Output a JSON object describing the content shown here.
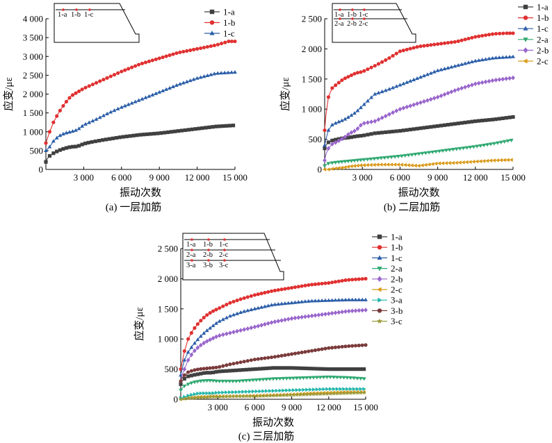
{
  "chart_data": [
    {
      "type": "line",
      "caption": "(a) 一层加筋",
      "xlabel": "振动次数",
      "ylabel": "应变/με",
      "xlim": [
        0,
        15000
      ],
      "ylim": [
        0,
        4000
      ],
      "xticks": [
        3000,
        6000,
        9000,
        12000,
        15000
      ],
      "xtick_labels": [
        "3 000",
        "6 000",
        "9 000",
        "12 000",
        "15 000"
      ],
      "yticks": [
        0,
        500,
        1000,
        1500,
        2000,
        2500,
        3000,
        3500,
        4000
      ],
      "ytick_labels": [
        "0",
        "500",
        "1 000",
        "1 500",
        "2 000",
        "2 500",
        "3 000",
        "3 500",
        "4 000"
      ],
      "legend_position": "top-right",
      "inset_labels": [
        [
          "1-a",
          "1-b",
          "1-c"
        ]
      ],
      "series": [
        {
          "name": "1-a",
          "color": "#404040",
          "marker": "square",
          "x": [
            0,
            100,
            300,
            600,
            1000,
            1500,
            2000,
            2500,
            3000,
            3500,
            4500,
            6000,
            7500,
            9000,
            10500,
            12000,
            13500,
            15000
          ],
          "y": [
            200,
            280,
            360,
            430,
            500,
            560,
            600,
            610,
            680,
            720,
            780,
            860,
            920,
            960,
            1020,
            1080,
            1140,
            1170
          ]
        },
        {
          "name": "1-b",
          "color": "#e03030",
          "marker": "circle",
          "x": [
            0,
            100,
            300,
            600,
            1000,
            1500,
            2000,
            2500,
            3000,
            4000,
            5000,
            6000,
            7500,
            9000,
            10500,
            12000,
            13500,
            14500,
            15000
          ],
          "y": [
            700,
            800,
            1000,
            1250,
            1500,
            1750,
            1950,
            2050,
            2150,
            2300,
            2450,
            2600,
            2800,
            2950,
            3100,
            3200,
            3300,
            3400,
            3400
          ]
        },
        {
          "name": "1-c",
          "color": "#2a5da8",
          "marker": "triangle-up",
          "x": [
            0,
            100,
            300,
            600,
            1000,
            1500,
            2000,
            2500,
            3000,
            4000,
            5000,
            6000,
            7500,
            9000,
            10500,
            12000,
            13500,
            15000
          ],
          "y": [
            500,
            530,
            600,
            750,
            880,
            960,
            1000,
            1050,
            1180,
            1330,
            1500,
            1650,
            1850,
            2050,
            2250,
            2420,
            2550,
            2580
          ]
        }
      ]
    },
    {
      "type": "line",
      "caption": "(b) 二层加筋",
      "xlabel": "振动次数",
      "ylabel": "应变/με",
      "xlim": [
        0,
        15000
      ],
      "ylim": [
        0,
        2500
      ],
      "xticks": [
        3000,
        6000,
        9000,
        12000,
        15000
      ],
      "xtick_labels": [
        "3 000",
        "6 000",
        "9 000",
        "12 000",
        "15 000"
      ],
      "yticks": [
        0,
        500,
        1000,
        1500,
        2000,
        2500
      ],
      "ytick_labels": [
        "0",
        "500",
        "1 000",
        "1 500",
        "2 000",
        "2 500"
      ],
      "legend_position": "top-right",
      "inset_labels": [
        [
          "1-a",
          "1-b",
          "1-c"
        ],
        [
          "2-a",
          "2-b",
          "2-c"
        ]
      ],
      "series": [
        {
          "name": "1-a",
          "color": "#404040",
          "marker": "square",
          "x": [
            0,
            100,
            300,
            600,
            1000,
            1500,
            2000,
            2500,
            3000,
            4000,
            5000,
            6000,
            7500,
            9000,
            10500,
            12000,
            13500,
            15000
          ],
          "y": [
            350,
            400,
            450,
            480,
            500,
            520,
            530,
            550,
            560,
            600,
            620,
            640,
            680,
            720,
            760,
            800,
            830,
            870
          ]
        },
        {
          "name": "1-b",
          "color": "#e03030",
          "marker": "circle",
          "x": [
            0,
            100,
            300,
            600,
            1000,
            1500,
            2000,
            2500,
            3000,
            4000,
            5000,
            6000,
            7500,
            9000,
            10500,
            12000,
            13500,
            14500,
            15000
          ],
          "y": [
            650,
            900,
            1200,
            1350,
            1420,
            1500,
            1550,
            1600,
            1620,
            1720,
            1830,
            1960,
            2040,
            2080,
            2120,
            2200,
            2250,
            2260,
            2260
          ]
        },
        {
          "name": "1-c",
          "color": "#2a5da8",
          "marker": "triangle-up",
          "x": [
            0,
            100,
            300,
            600,
            1000,
            1500,
            2000,
            2500,
            3000,
            4000,
            5000,
            6000,
            7500,
            9000,
            10500,
            12000,
            13500,
            15000
          ],
          "y": [
            400,
            500,
            650,
            740,
            780,
            820,
            880,
            950,
            1050,
            1250,
            1320,
            1400,
            1520,
            1640,
            1720,
            1800,
            1850,
            1870
          ]
        },
        {
          "name": "2-a",
          "color": "#2ea870",
          "marker": "triangle-down",
          "x": [
            0,
            100,
            300,
            600,
            1000,
            1500,
            2000,
            2500,
            3000,
            4500,
            6000,
            7500,
            9000,
            10500,
            12000,
            13500,
            15000
          ],
          "y": [
            60,
            80,
            100,
            110,
            120,
            130,
            140,
            150,
            160,
            190,
            220,
            260,
            300,
            340,
            380,
            430,
            490
          ]
        },
        {
          "name": "2-b",
          "color": "#9966cc",
          "marker": "diamond",
          "x": [
            0,
            100,
            300,
            600,
            1000,
            1500,
            2000,
            2500,
            3000,
            4000,
            5000,
            6000,
            7500,
            9000,
            10500,
            12000,
            13500,
            15000
          ],
          "y": [
            150,
            250,
            350,
            420,
            460,
            520,
            600,
            650,
            760,
            800,
            900,
            1000,
            1100,
            1200,
            1320,
            1420,
            1480,
            1520
          ]
        },
        {
          "name": "2-c",
          "color": "#d99a1a",
          "marker": "triangle-left",
          "x": [
            0,
            300,
            600,
            1000,
            1500,
            2000,
            2500,
            3000,
            4500,
            6000,
            7500,
            9000,
            10500,
            12000,
            13500,
            15000
          ],
          "y": [
            0,
            0,
            10,
            20,
            30,
            50,
            60,
            70,
            80,
            80,
            60,
            100,
            110,
            130,
            150,
            160
          ]
        }
      ]
    },
    {
      "type": "line",
      "caption": "(c) 三层加筋",
      "xlabel": "振动次数",
      "ylabel": "应变/με",
      "xlim": [
        0,
        15000
      ],
      "ylim": [
        0,
        2500
      ],
      "xticks": [
        3000,
        6000,
        9000,
        12000,
        15000
      ],
      "xtick_labels": [
        "3 000",
        "6 000",
        "9 000",
        "12 000",
        "15 000"
      ],
      "yticks": [
        0,
        500,
        1000,
        1500,
        2000,
        2500
      ],
      "ytick_labels": [
        "0",
        "500",
        "1 000",
        "1 500",
        "2 000",
        "2 500"
      ],
      "legend_position": "top-right",
      "inset_labels": [
        [
          "1-a",
          "1-b",
          "1-c"
        ],
        [
          "2-a",
          "2-b",
          "2-c"
        ],
        [
          "3-a",
          "3-b",
          "3-c"
        ]
      ],
      "series": [
        {
          "name": "1-a",
          "color": "#404040",
          "marker": "square",
          "x": [
            0,
            100,
            300,
            600,
            1000,
            1500,
            2000,
            2500,
            3000,
            4500,
            6000,
            7500,
            9000,
            10500,
            12000,
            13500,
            15000
          ],
          "y": [
            250,
            300,
            340,
            380,
            400,
            420,
            440,
            440,
            460,
            480,
            500,
            520,
            520,
            510,
            500,
            500,
            500
          ]
        },
        {
          "name": "1-b",
          "color": "#e03030",
          "marker": "circle",
          "x": [
            0,
            100,
            300,
            600,
            1000,
            1500,
            2000,
            2500,
            3000,
            4000,
            5000,
            6000,
            7500,
            9000,
            10500,
            12000,
            13500,
            15000
          ],
          "y": [
            500,
            600,
            800,
            1000,
            1150,
            1280,
            1380,
            1450,
            1500,
            1600,
            1670,
            1730,
            1800,
            1850,
            1900,
            1930,
            1980,
            2000
          ]
        },
        {
          "name": "1-c",
          "color": "#2a5da8",
          "marker": "triangle-up",
          "x": [
            0,
            100,
            300,
            600,
            1000,
            1500,
            2000,
            2500,
            3000,
            4000,
            5000,
            6000,
            7500,
            9000,
            10500,
            12000,
            13500,
            15000
          ],
          "y": [
            400,
            500,
            650,
            780,
            900,
            1020,
            1120,
            1200,
            1280,
            1380,
            1450,
            1500,
            1570,
            1600,
            1630,
            1640,
            1650,
            1650
          ]
        },
        {
          "name": "2-a",
          "color": "#2ea870",
          "marker": "triangle-down",
          "x": [
            0,
            100,
            300,
            600,
            1000,
            1500,
            2000,
            2500,
            3000,
            4500,
            6000,
            7500,
            9000,
            10500,
            12000,
            13500,
            15000
          ],
          "y": [
            150,
            180,
            220,
            250,
            280,
            300,
            310,
            310,
            300,
            300,
            320,
            340,
            350,
            360,
            370,
            360,
            340
          ]
        },
        {
          "name": "2-b",
          "color": "#9966cc",
          "marker": "diamond",
          "x": [
            0,
            100,
            300,
            600,
            1000,
            1500,
            2000,
            2500,
            3000,
            4000,
            5000,
            6000,
            7500,
            9000,
            10500,
            12000,
            13500,
            15000
          ],
          "y": [
            300,
            400,
            500,
            650,
            780,
            880,
            950,
            1000,
            1050,
            1100,
            1150,
            1200,
            1280,
            1340,
            1380,
            1420,
            1460,
            1480
          ]
        },
        {
          "name": "2-c",
          "color": "#d99a1a",
          "marker": "triangle-left",
          "x": [
            0,
            300,
            600,
            1000,
            1500,
            2000,
            2500,
            3000,
            4500,
            6000,
            7500,
            9000,
            10500,
            12000,
            13500,
            15000
          ],
          "y": [
            0,
            10,
            20,
            30,
            40,
            40,
            50,
            50,
            50,
            60,
            70,
            80,
            100,
            110,
            120,
            120
          ]
        },
        {
          "name": "3-a",
          "color": "#1fb5a8",
          "marker": "triangle-right",
          "x": [
            0,
            300,
            600,
            1000,
            1500,
            2000,
            2500,
            3000,
            4500,
            6000,
            7500,
            9000,
            10500,
            12000,
            13500,
            15000
          ],
          "y": [
            20,
            40,
            60,
            80,
            100,
            100,
            100,
            110,
            120,
            130,
            140,
            150,
            160,
            170,
            170,
            170
          ]
        },
        {
          "name": "3-b",
          "color": "#7a3a3a",
          "marker": "circle",
          "x": [
            0,
            100,
            300,
            600,
            1000,
            1500,
            2000,
            2500,
            3000,
            4000,
            5000,
            6000,
            7500,
            9000,
            10500,
            12000,
            13500,
            15000
          ],
          "y": [
            300,
            350,
            400,
            450,
            480,
            500,
            510,
            520,
            530,
            580,
            620,
            660,
            700,
            750,
            800,
            850,
            880,
            900
          ]
        },
        {
          "name": "3-c",
          "color": "#9a9a3a",
          "marker": "star",
          "x": [
            0,
            300,
            600,
            1000,
            1500,
            2000,
            2500,
            3000,
            4500,
            6000,
            7500,
            9000,
            10500,
            12000,
            13500,
            15000
          ],
          "y": [
            0,
            10,
            20,
            20,
            30,
            30,
            40,
            40,
            50,
            50,
            60,
            70,
            80,
            90,
            100,
            110
          ]
        }
      ]
    }
  ]
}
